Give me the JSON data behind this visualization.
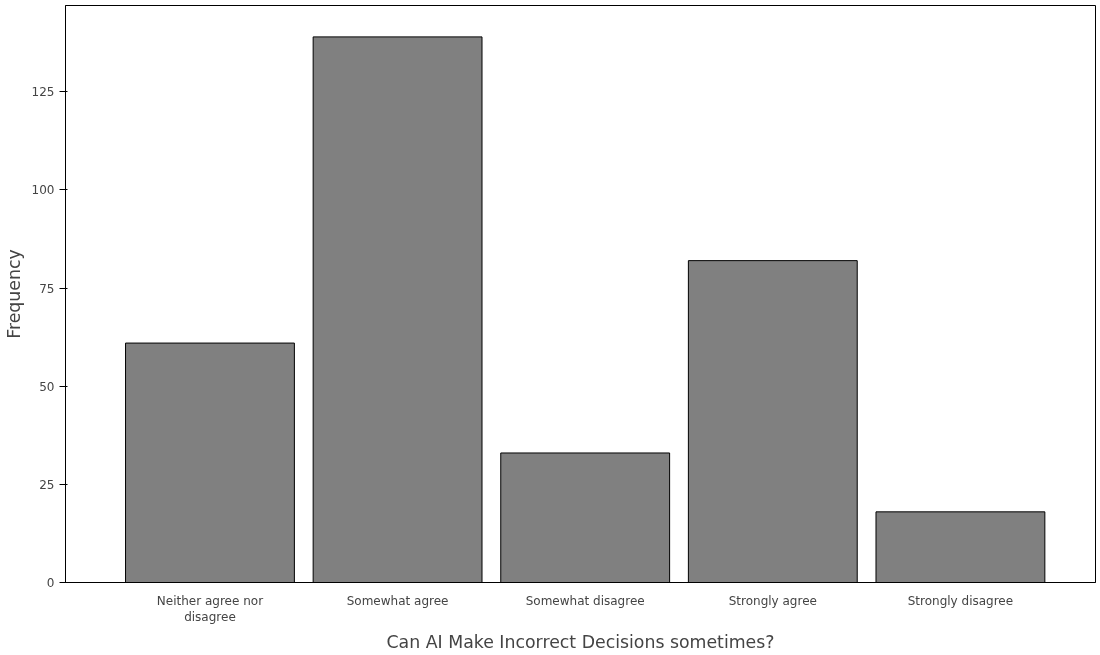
{
  "chart_data": {
    "type": "bar",
    "xlabel": "Can AI Make Incorrect Decisions sometimes?",
    "ylabel": "Frequency",
    "categories": [
      "Neither agree nor disagree",
      "Somewhat agree",
      "Somewhat disagree",
      "Strongly agree",
      "Strongly disagree"
    ],
    "values": [
      61,
      139,
      33,
      82,
      18
    ],
    "color": "#808080",
    "ylim": [
      0,
      147
    ],
    "yticks": [
      0,
      25,
      50,
      75,
      100,
      125
    ],
    "grid": false
  }
}
